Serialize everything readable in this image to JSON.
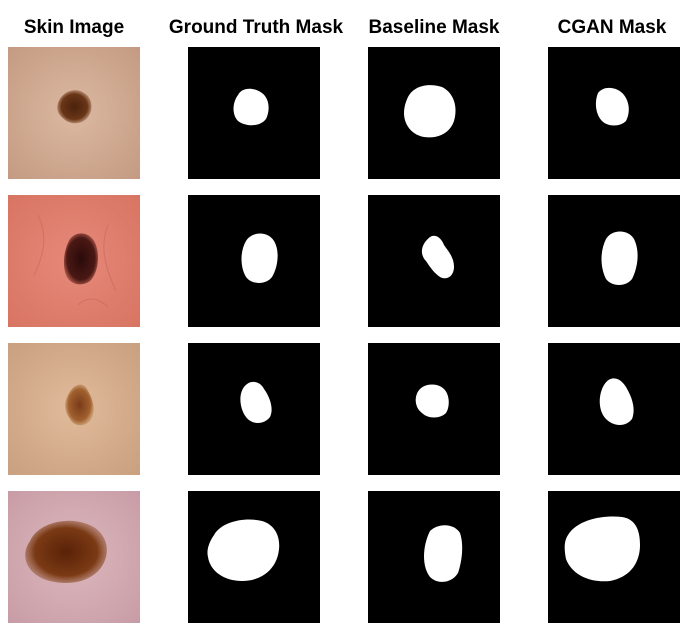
{
  "columns": [
    "Skin Image",
    "Ground Truth Mask",
    "Baseline Mask",
    "CGAN Mask"
  ],
  "rows": [
    {
      "skin_tone": "#cfa78f",
      "lesion_color": "#5a2e14"
    },
    {
      "skin_tone": "#df7f6c",
      "lesion_color": "#3a1010"
    },
    {
      "skin_tone": "#d7ae8c",
      "lesion_color": "#8a4a22"
    },
    {
      "skin_tone": "#d5aeb6",
      "lesion_color": "#6a2e12"
    }
  ],
  "colors": {
    "mask_background": "#000000",
    "mask_foreground": "#ffffff"
  }
}
